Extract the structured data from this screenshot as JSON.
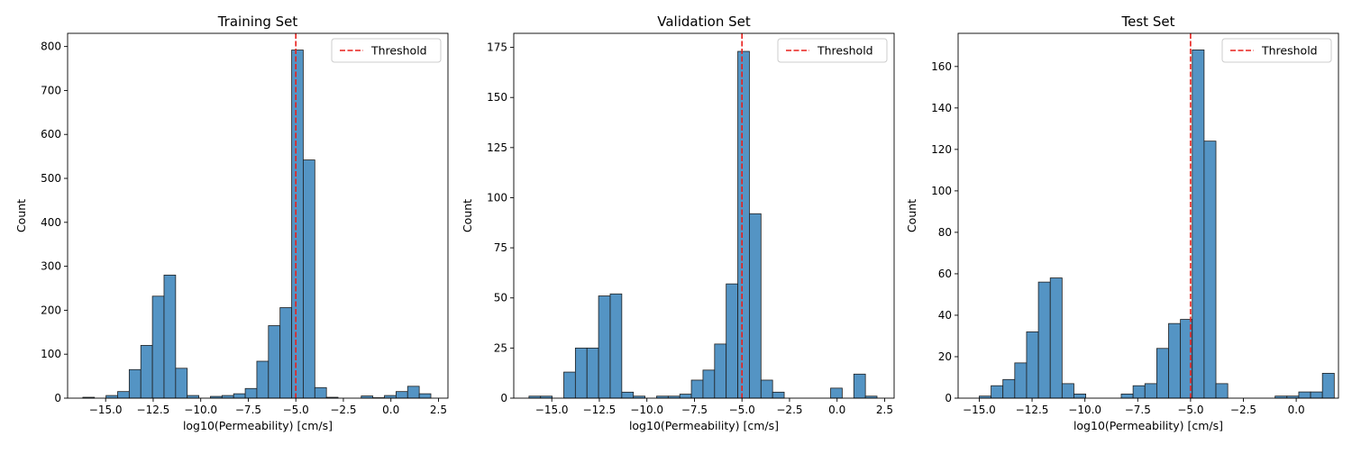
{
  "colors": {
    "bar_fill": "#5494c4",
    "bar_edge": "#1f1f1f",
    "threshold": "#e8201c"
  },
  "chart_data": [
    {
      "type": "bar",
      "title": "Training Set",
      "xlabel": "log10(Permeability) [cm/s]",
      "ylabel": "Count",
      "xlim": [
        -17.0,
        3.0
      ],
      "ylim": [
        0,
        830
      ],
      "xticks": [
        -15.0,
        -12.5,
        -10.0,
        -7.5,
        -5.0,
        -2.5,
        0.0,
        2.5
      ],
      "xtick_labels": [
        "−15.0",
        "−12.5",
        "−10.0",
        "−7.5",
        "−5.0",
        "−2.5",
        "0.0",
        "2.5"
      ],
      "yticks": [
        0,
        100,
        200,
        300,
        400,
        500,
        600,
        700,
        800
      ],
      "ytick_labels": [
        "0",
        "100",
        "200",
        "300",
        "400",
        "500",
        "600",
        "700",
        "800"
      ],
      "threshold": -5.0,
      "legend": {
        "label": "Threshold",
        "position": "top-right"
      },
      "bins_start": -16.2,
      "bin_width": 0.61,
      "counts": [
        2,
        0,
        6,
        15,
        65,
        120,
        232,
        280,
        68,
        6,
        0,
        4,
        6,
        10,
        22,
        84,
        165,
        206,
        792,
        542,
        24,
        2,
        0,
        0,
        5,
        1,
        6,
        15,
        27,
        10
      ]
    },
    {
      "type": "bar",
      "title": "Validation Set",
      "xlabel": "log10(Permeability) [cm/s]",
      "ylabel": "Count",
      "xlim": [
        -17.0,
        3.0
      ],
      "ylim": [
        0,
        182
      ],
      "xticks": [
        -15.0,
        -12.5,
        -10.0,
        -7.5,
        -5.0,
        -2.5,
        0.0,
        2.5
      ],
      "xtick_labels": [
        "−15.0",
        "−12.5",
        "−10.0",
        "−7.5",
        "−5.0",
        "−2.5",
        "0.0",
        "2.5"
      ],
      "yticks": [
        0,
        25,
        50,
        75,
        100,
        125,
        150,
        175
      ],
      "ytick_labels": [
        "0",
        "25",
        "50",
        "75",
        "100",
        "125",
        "150",
        "175"
      ],
      "threshold": -5.0,
      "legend": {
        "label": "Threshold",
        "position": "top-right"
      },
      "bins_start": -16.2,
      "bin_width": 0.61,
      "counts": [
        1,
        1,
        0,
        13,
        25,
        25,
        51,
        52,
        3,
        1,
        0,
        1,
        1,
        2,
        9,
        14,
        27,
        57,
        173,
        92,
        9,
        3,
        0,
        0,
        0,
        0,
        5,
        0,
        12,
        1
      ]
    },
    {
      "type": "bar",
      "title": "Test Set",
      "xlabel": "log10(Permeability) [cm/s]",
      "ylabel": "Count",
      "xlim": [
        -16.0,
        2.0
      ],
      "ylim": [
        0,
        176
      ],
      "xticks": [
        -15.0,
        -12.5,
        -10.0,
        -7.5,
        -5.0,
        -2.5,
        0.0
      ],
      "xtick_labels": [
        "−15.0",
        "−12.5",
        "−10.0",
        "−7.5",
        "−5.0",
        "−2.5",
        "0.0"
      ],
      "yticks": [
        0,
        20,
        40,
        60,
        80,
        100,
        120,
        140,
        160
      ],
      "ytick_labels": [
        "0",
        "20",
        "40",
        "60",
        "80",
        "100",
        "120",
        "140",
        "160"
      ],
      "threshold": -5.0,
      "legend": {
        "label": "Threshold",
        "position": "top-right"
      },
      "bins_start": -15.0,
      "bin_width": 0.56,
      "counts": [
        1,
        6,
        9,
        17,
        32,
        56,
        58,
        7,
        2,
        0,
        0,
        0,
        2,
        6,
        7,
        24,
        36,
        38,
        168,
        124,
        7,
        0,
        0,
        0,
        0,
        1,
        1,
        3,
        3,
        12
      ]
    }
  ]
}
